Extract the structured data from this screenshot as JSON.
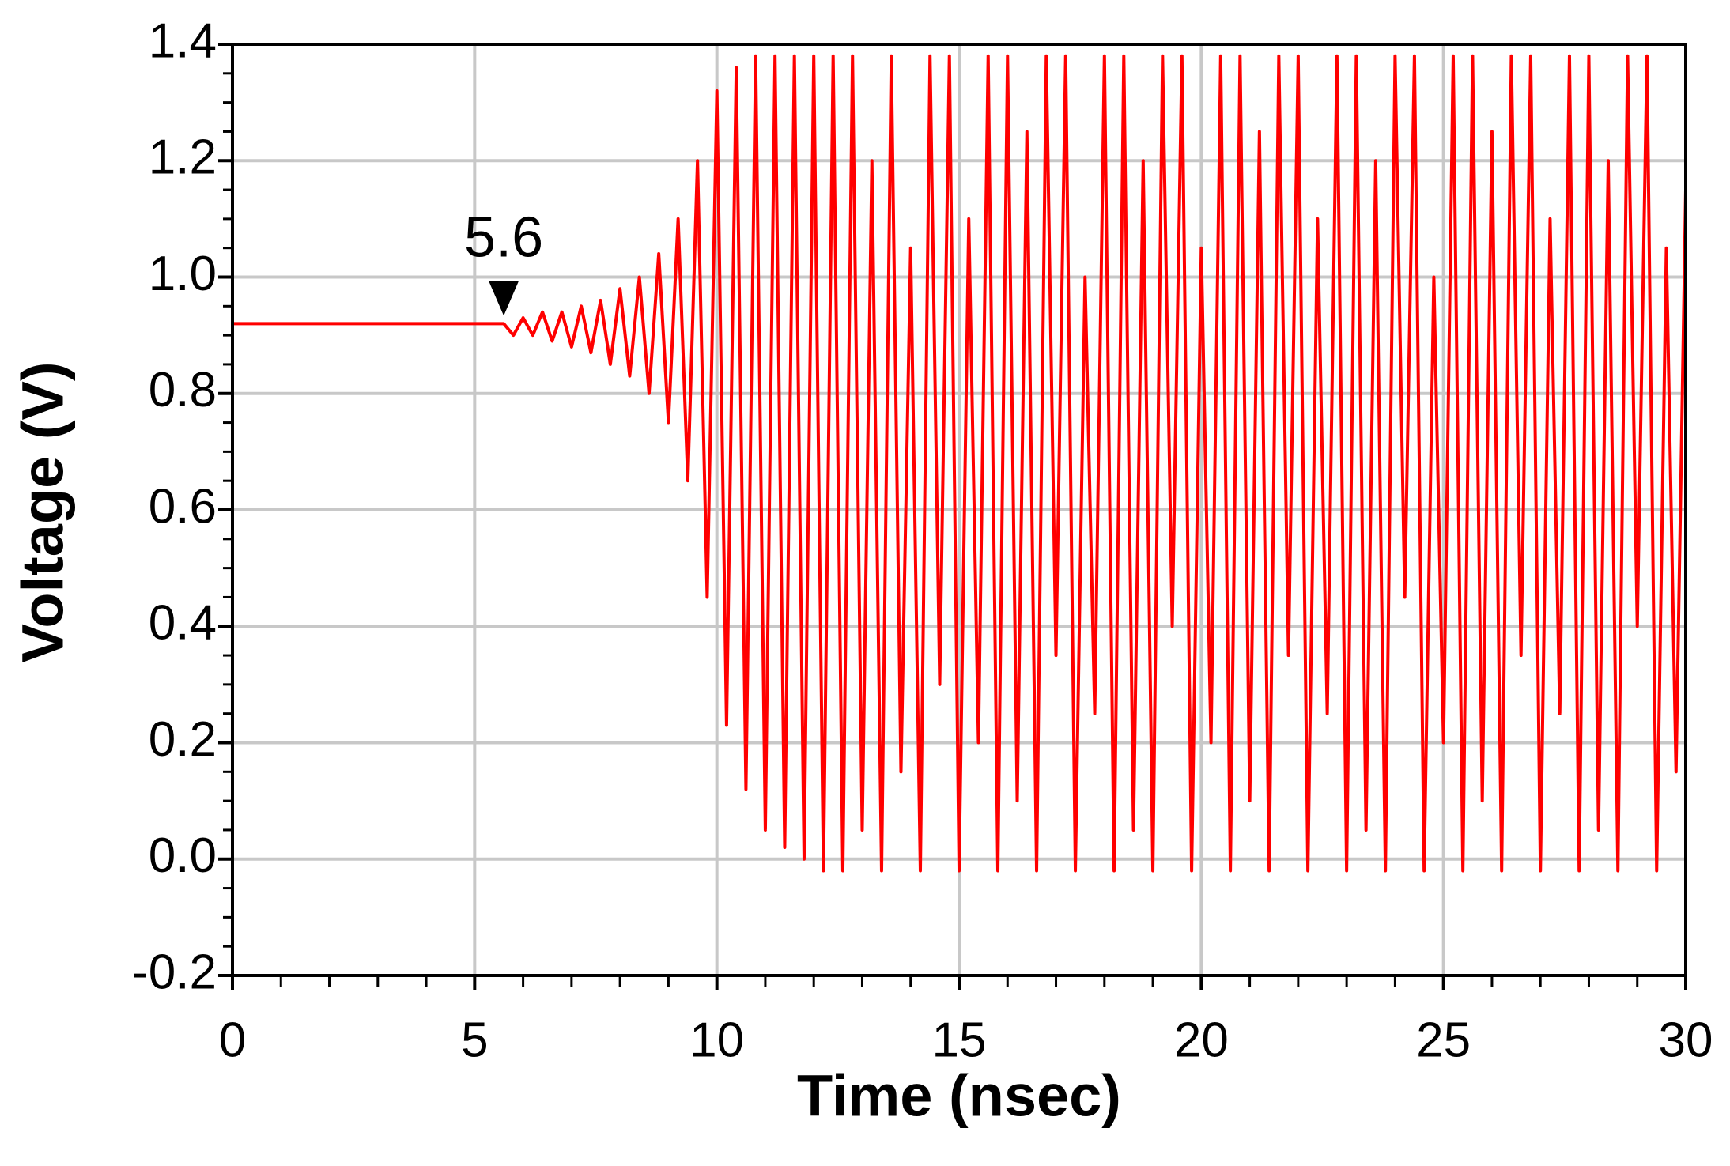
{
  "chart_data": {
    "type": "line",
    "x_label": "Time (nsec)",
    "y_label": "Voltage (V)",
    "color": "#ff0000",
    "grid": true,
    "marker_x": 5.6,
    "xlim": [
      0,
      30
    ],
    "xticks": [
      0,
      5,
      10,
      15,
      20,
      25,
      30
    ],
    "ylim": [
      -0.2,
      1.4
    ],
    "yticks": [
      -0.2,
      {
        "value": 0,
        "label": "0.0"
      },
      0.2,
      0.4,
      0.6,
      0.8,
      {
        "value": 1,
        "label": "1.0"
      },
      1.2,
      1.4
    ],
    "x": [
      0,
      5.6,
      5.8,
      6.0,
      6.2,
      6.4,
      6.6,
      6.8,
      7.0,
      7.2,
      7.4,
      7.6,
      7.8,
      8.0,
      8.2,
      8.4,
      8.6,
      8.8,
      9.0,
      9.2,
      9.4,
      9.6,
      9.8,
      10.0,
      10.2,
      10.4,
      10.6,
      10.8,
      11.0,
      11.2,
      11.4,
      11.6,
      11.8,
      12.0,
      12.2,
      12.4,
      12.6,
      12.8,
      13.0,
      13.2,
      13.4,
      13.6,
      13.8,
      14.0,
      14.2,
      14.4,
      14.6,
      14.8,
      15.0,
      15.2,
      15.4,
      15.6,
      15.8,
      16.0,
      16.2,
      16.4,
      16.6,
      16.8,
      17.0,
      17.2,
      17.4,
      17.6,
      17.8,
      18.0,
      18.2,
      18.4,
      18.6,
      18.8,
      19.0,
      19.2,
      19.4,
      19.6,
      19.8,
      20.0,
      20.2,
      20.4,
      20.6,
      20.8,
      21.0,
      21.2,
      21.4,
      21.6,
      21.8,
      22.0,
      22.2,
      22.4,
      22.6,
      22.8,
      23.0,
      23.2,
      23.4,
      23.6,
      23.8,
      24.0,
      24.2,
      24.4,
      24.6,
      24.8,
      25.0,
      25.2,
      25.4,
      25.6,
      25.8,
      26.0,
      26.2,
      26.4,
      26.6,
      26.8,
      27.0,
      27.2,
      27.4,
      27.6,
      27.8,
      28.0,
      28.2,
      28.4,
      28.6,
      28.8,
      29.0,
      29.2,
      29.4,
      29.6,
      29.8,
      30.0
    ],
    "values": [
      0.92,
      0.92,
      0.9,
      0.93,
      0.9,
      0.94,
      0.89,
      0.94,
      0.88,
      0.95,
      0.87,
      0.96,
      0.85,
      0.98,
      0.83,
      1.0,
      0.8,
      1.04,
      0.75,
      1.1,
      0.65,
      1.2,
      0.45,
      1.32,
      0.23,
      1.36,
      0.12,
      1.38,
      0.05,
      1.38,
      0.02,
      1.38,
      0.0,
      1.38,
      -0.02,
      1.38,
      -0.02,
      1.38,
      0.05,
      1.2,
      -0.02,
      1.38,
      0.15,
      1.05,
      -0.02,
      1.38,
      0.3,
      1.38,
      -0.02,
      1.1,
      0.2,
      1.38,
      -0.02,
      1.38,
      0.1,
      1.25,
      -0.02,
      1.38,
      0.35,
      1.38,
      -0.02,
      1.0,
      0.25,
      1.38,
      -0.02,
      1.38,
      0.05,
      1.2,
      -0.02,
      1.38,
      0.4,
      1.38,
      -0.02,
      1.05,
      0.2,
      1.38,
      -0.02,
      1.38,
      0.1,
      1.25,
      -0.02,
      1.38,
      0.35,
      1.38,
      -0.02,
      1.1,
      0.25,
      1.38,
      -0.02,
      1.38,
      0.05,
      1.2,
      -0.02,
      1.38,
      0.45,
      1.38,
      -0.02,
      1.0,
      0.2,
      1.38,
      -0.02,
      1.38,
      0.1,
      1.25,
      -0.02,
      1.38,
      0.35,
      1.38,
      -0.02,
      1.1,
      0.25,
      1.38,
      -0.02,
      1.38,
      0.05,
      1.2,
      -0.02,
      1.38,
      0.4,
      1.38,
      -0.02,
      1.05,
      0.15,
      1.15
    ]
  }
}
